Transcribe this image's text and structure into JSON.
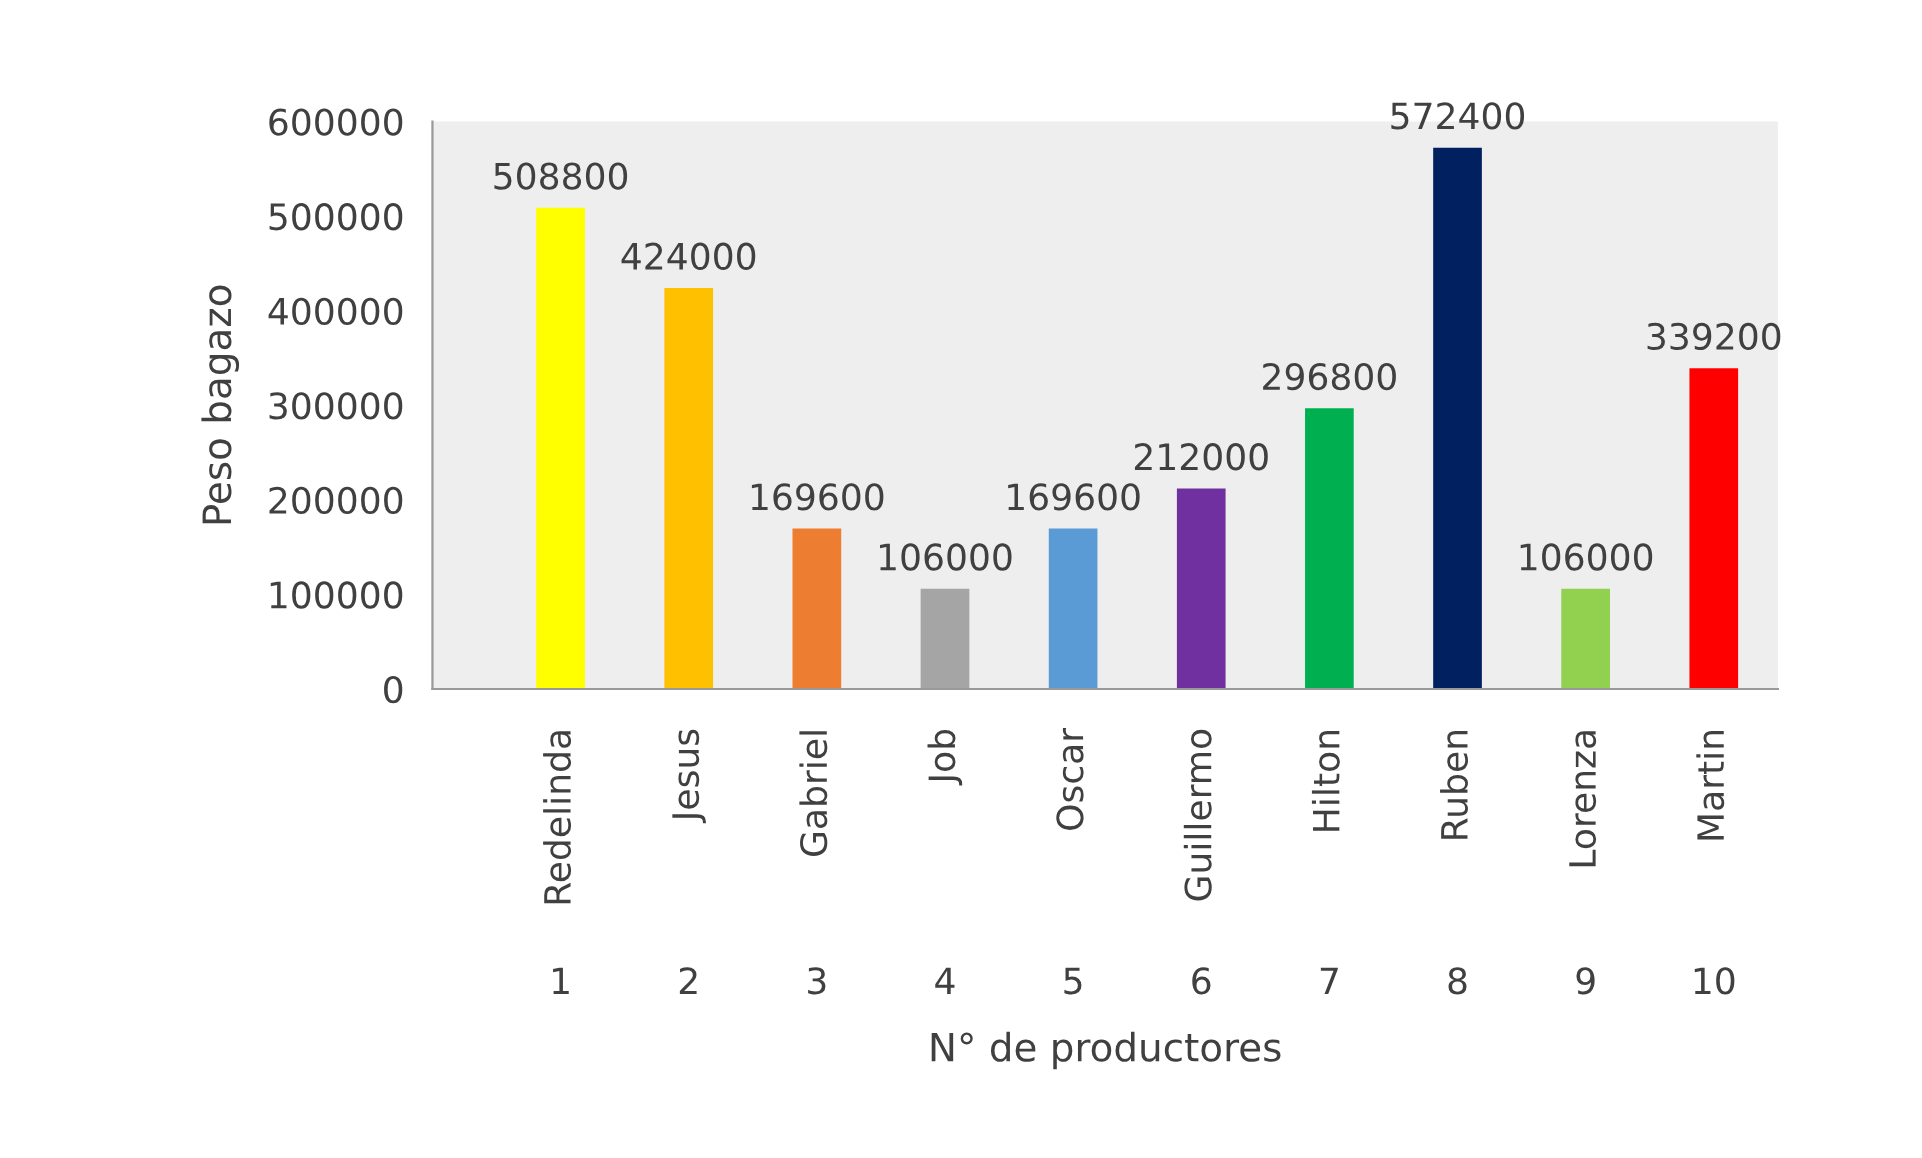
{
  "chart_data": {
    "type": "bar",
    "xlabel": "N° de productores",
    "ylabel": "Peso bagazo",
    "categories": [
      "Redelinda",
      "Jesus",
      "Gabriel",
      "Job",
      "Oscar",
      "Guillermo",
      "Hilton",
      "Ruben",
      "Lorenza",
      "Martin"
    ],
    "values": [
      508800,
      424000,
      169600,
      106000,
      169600,
      212000,
      296800,
      572400,
      106000,
      339200
    ],
    "colors": [
      "#ffff00",
      "#ffc000",
      "#ed7d31",
      "#a5a5a5",
      "#5b9bd5",
      "#7030a0",
      "#00b050",
      "#002060",
      "#92d050",
      "#ff0000"
    ],
    "ylim": [
      0,
      600000
    ],
    "yticks": [
      0,
      100000,
      200000,
      300000,
      400000,
      500000,
      600000
    ],
    "data_labels": true,
    "grid": false,
    "legend": false,
    "annotations": [
      "1",
      "2",
      "3",
      "4",
      "5",
      "6",
      "7",
      "8",
      "9",
      "10"
    ]
  }
}
